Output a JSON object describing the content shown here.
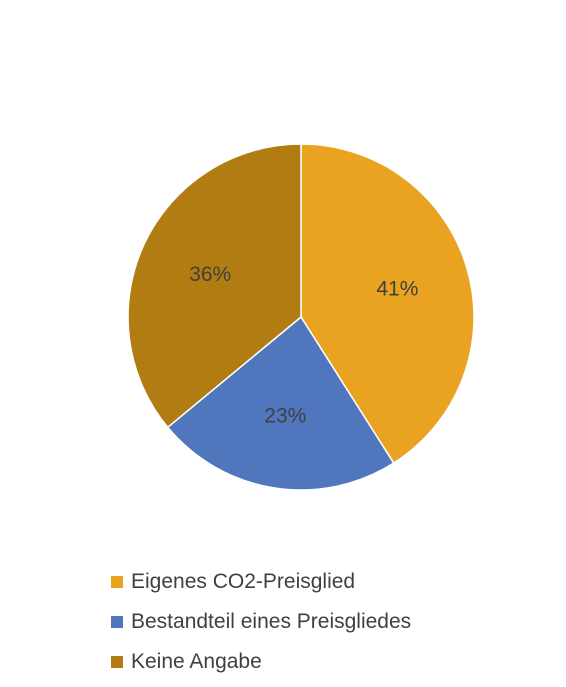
{
  "chart_data": {
    "type": "pie",
    "legend_position": "bottom",
    "slices": [
      {
        "name": "Eigenes CO2-Preisglied",
        "value": 41,
        "label": "41%",
        "color": "#E9A320"
      },
      {
        "name": "Bestandteil eines Preisgliedes",
        "value": 23,
        "label": "23%",
        "color": "#5077BD"
      },
      {
        "name": "Keine Angabe",
        "value": 36,
        "label": "36%",
        "color": "#B17D12"
      }
    ]
  }
}
